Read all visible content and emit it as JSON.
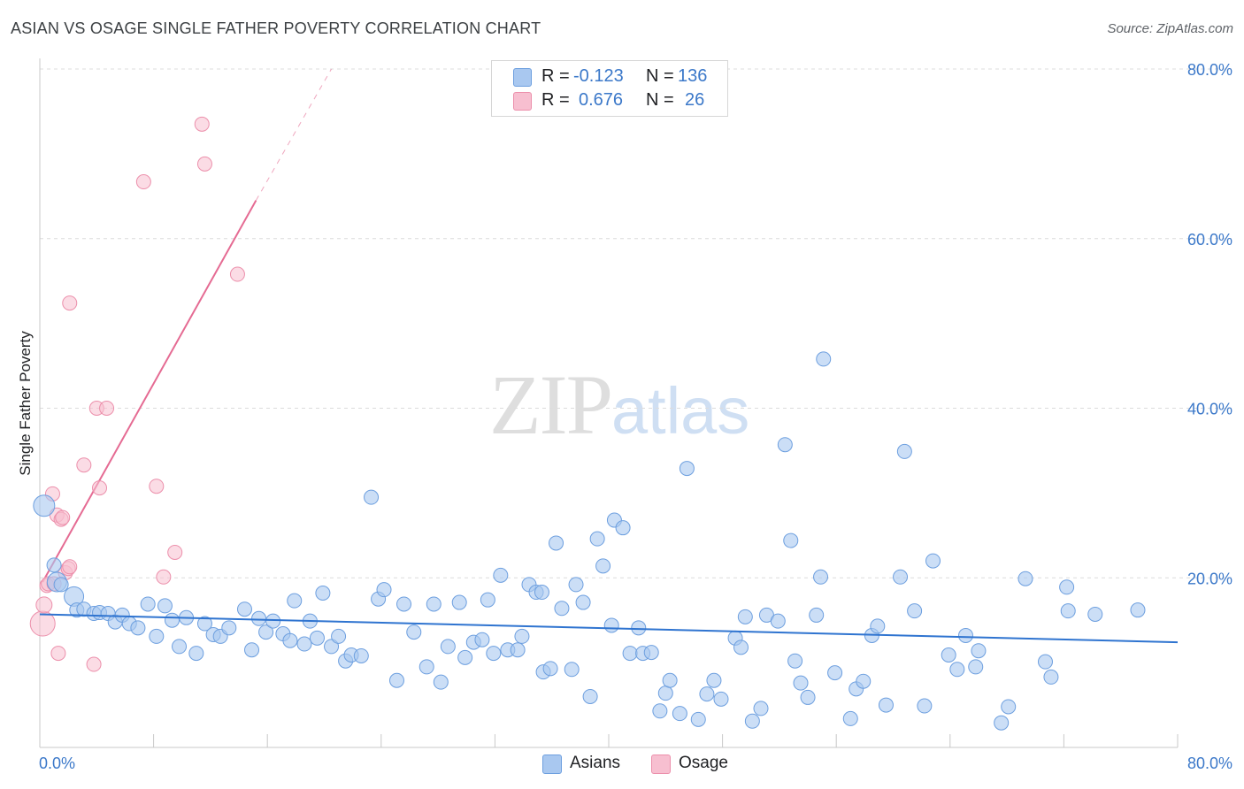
{
  "header": {
    "title": "ASIAN VS OSAGE SINGLE FATHER POVERTY CORRELATION CHART",
    "source": "Source: ZipAtlas.com"
  },
  "legend": {
    "row1": {
      "r_label": "R =",
      "r_value": "-0.123",
      "n_label": "N =",
      "n_value": "136"
    },
    "row2": {
      "r_label": "R =",
      "r_value": "0.676",
      "n_label": "N =",
      "n_value": "26"
    },
    "bottom": [
      "Asians",
      "Osage"
    ]
  },
  "watermark": {
    "zip": "ZIP",
    "atlas": "atlas"
  },
  "colors": {
    "asian_fill": "#a9c8f0",
    "asian_stroke": "#6d9fdf",
    "asian_line": "#2f74d0",
    "osage_fill": "#f7bfd0",
    "osage_stroke": "#ec8fab",
    "osage_line": "#e56b93",
    "axis_label": "#3b78c9",
    "grid": "#dcdcdc"
  },
  "chart_data": {
    "type": "scatter",
    "title": "ASIAN VS OSAGE SINGLE FATHER POVERTY CORRELATION CHART",
    "xlabel": "",
    "ylabel": "Single Father Poverty",
    "xlim": [
      0,
      80
    ],
    "ylim": [
      0,
      80
    ],
    "x_tick_labels": [
      "0.0%",
      "80.0%"
    ],
    "y_tick_labels": [
      "20.0%",
      "40.0%",
      "60.0%",
      "80.0%"
    ],
    "y_ticks": [
      20,
      40,
      60,
      80
    ],
    "grid": true,
    "legend_position": "top-center",
    "series": [
      {
        "name": "Asians",
        "r": -0.123,
        "n": 136,
        "trend": {
          "x": [
            0,
            80
          ],
          "y": [
            15.7,
            12.4
          ]
        },
        "points": [
          [
            0.3,
            28.5
          ],
          [
            1.0,
            21.5
          ],
          [
            1.2,
            19.5
          ],
          [
            1.5,
            19.2
          ],
          [
            2.4,
            17.8
          ],
          [
            2.6,
            16.2
          ],
          [
            3.1,
            16.3
          ],
          [
            3.8,
            15.8
          ],
          [
            4.2,
            15.9
          ],
          [
            4.8,
            15.8
          ],
          [
            5.3,
            14.8
          ],
          [
            5.8,
            15.6
          ],
          [
            6.3,
            14.6
          ],
          [
            6.9,
            14.1
          ],
          [
            7.6,
            16.9
          ],
          [
            8.2,
            13.1
          ],
          [
            8.8,
            16.7
          ],
          [
            9.3,
            15.0
          ],
          [
            9.8,
            11.9
          ],
          [
            10.3,
            15.3
          ],
          [
            11.0,
            11.1
          ],
          [
            11.6,
            14.6
          ],
          [
            12.2,
            13.3
          ],
          [
            12.7,
            13.1
          ],
          [
            13.3,
            14.1
          ],
          [
            14.4,
            16.3
          ],
          [
            14.9,
            11.5
          ],
          [
            15.4,
            15.2
          ],
          [
            15.9,
            13.6
          ],
          [
            16.4,
            14.9
          ],
          [
            17.1,
            13.4
          ],
          [
            17.6,
            12.6
          ],
          [
            17.9,
            17.3
          ],
          [
            18.6,
            12.2
          ],
          [
            19.0,
            14.9
          ],
          [
            19.5,
            12.9
          ],
          [
            19.9,
            18.2
          ],
          [
            20.5,
            11.9
          ],
          [
            21.0,
            13.1
          ],
          [
            21.5,
            10.2
          ],
          [
            21.9,
            10.9
          ],
          [
            22.6,
            10.8
          ],
          [
            23.3,
            29.5
          ],
          [
            23.8,
            17.5
          ],
          [
            24.2,
            18.6
          ],
          [
            25.1,
            7.9
          ],
          [
            25.6,
            16.9
          ],
          [
            26.3,
            13.6
          ],
          [
            27.2,
            9.5
          ],
          [
            27.7,
            16.9
          ],
          [
            28.2,
            7.7
          ],
          [
            28.7,
            11.9
          ],
          [
            29.5,
            17.1
          ],
          [
            29.9,
            10.6
          ],
          [
            30.5,
            12.4
          ],
          [
            31.1,
            12.7
          ],
          [
            31.5,
            17.4
          ],
          [
            31.9,
            11.1
          ],
          [
            32.4,
            20.3
          ],
          [
            32.9,
            11.5
          ],
          [
            33.6,
            11.5
          ],
          [
            33.9,
            13.1
          ],
          [
            34.4,
            19.2
          ],
          [
            34.9,
            18.3
          ],
          [
            35.3,
            18.3
          ],
          [
            35.4,
            8.9
          ],
          [
            35.9,
            9.3
          ],
          [
            36.3,
            24.1
          ],
          [
            36.7,
            16.4
          ],
          [
            37.4,
            9.2
          ],
          [
            37.7,
            19.2
          ],
          [
            38.2,
            17.1
          ],
          [
            38.7,
            6.0
          ],
          [
            39.2,
            24.6
          ],
          [
            39.6,
            21.4
          ],
          [
            40.2,
            14.4
          ],
          [
            40.4,
            26.8
          ],
          [
            41.0,
            25.9
          ],
          [
            41.5,
            11.1
          ],
          [
            42.1,
            14.1
          ],
          [
            42.4,
            11.1
          ],
          [
            43.0,
            11.2
          ],
          [
            43.6,
            4.3
          ],
          [
            44.0,
            6.4
          ],
          [
            44.3,
            7.9
          ],
          [
            45.0,
            4.0
          ],
          [
            45.5,
            32.9
          ],
          [
            46.3,
            3.3
          ],
          [
            46.9,
            6.3
          ],
          [
            47.4,
            7.9
          ],
          [
            47.9,
            5.7
          ],
          [
            48.9,
            12.9
          ],
          [
            49.3,
            11.8
          ],
          [
            49.6,
            15.4
          ],
          [
            50.1,
            3.1
          ],
          [
            50.7,
            4.6
          ],
          [
            51.1,
            15.6
          ],
          [
            51.9,
            14.9
          ],
          [
            52.4,
            35.7
          ],
          [
            52.8,
            24.4
          ],
          [
            53.1,
            10.2
          ],
          [
            53.5,
            7.6
          ],
          [
            54.0,
            5.9
          ],
          [
            54.6,
            15.6
          ],
          [
            54.9,
            20.1
          ],
          [
            55.1,
            45.8
          ],
          [
            55.9,
            8.8
          ],
          [
            57.0,
            3.4
          ],
          [
            57.4,
            6.9
          ],
          [
            57.9,
            7.8
          ],
          [
            58.5,
            13.2
          ],
          [
            58.9,
            14.3
          ],
          [
            59.5,
            5.0
          ],
          [
            60.5,
            20.1
          ],
          [
            60.8,
            34.9
          ],
          [
            61.5,
            16.1
          ],
          [
            62.2,
            4.9
          ],
          [
            62.8,
            22.0
          ],
          [
            63.9,
            10.9
          ],
          [
            64.5,
            9.2
          ],
          [
            65.1,
            13.2
          ],
          [
            65.8,
            9.5
          ],
          [
            66.0,
            11.4
          ],
          [
            67.6,
            2.9
          ],
          [
            68.1,
            4.8
          ],
          [
            69.3,
            19.9
          ],
          [
            70.7,
            10.1
          ],
          [
            71.1,
            8.3
          ],
          [
            72.2,
            18.9
          ],
          [
            72.3,
            16.1
          ],
          [
            74.2,
            15.7
          ],
          [
            77.2,
            16.2
          ]
        ]
      },
      {
        "name": "Osage",
        "r": 0.676,
        "n": 26,
        "trend": {
          "x": [
            0.2,
            15.2
          ],
          "y": [
            19.5,
            64.5
          ],
          "dashed_extension_to": [
            20.5,
            80.0
          ]
        },
        "points": [
          [
            0.2,
            14.6
          ],
          [
            0.3,
            16.8
          ],
          [
            0.5,
            19.1
          ],
          [
            0.6,
            19.3
          ],
          [
            0.9,
            29.9
          ],
          [
            1.0,
            19.3
          ],
          [
            1.2,
            27.4
          ],
          [
            1.3,
            11.1
          ],
          [
            1.5,
            26.9
          ],
          [
            1.6,
            27.1
          ],
          [
            1.8,
            20.6
          ],
          [
            2.0,
            21.1
          ],
          [
            2.1,
            21.3
          ],
          [
            2.1,
            52.4
          ],
          [
            3.1,
            33.3
          ],
          [
            3.8,
            9.8
          ],
          [
            4.0,
            40.0
          ],
          [
            4.2,
            30.6
          ],
          [
            4.7,
            40.0
          ],
          [
            7.3,
            66.7
          ],
          [
            8.2,
            30.8
          ],
          [
            8.7,
            20.1
          ],
          [
            9.5,
            23.0
          ],
          [
            11.4,
            73.5
          ],
          [
            11.6,
            68.8
          ],
          [
            13.9,
            55.8
          ]
        ]
      }
    ]
  }
}
